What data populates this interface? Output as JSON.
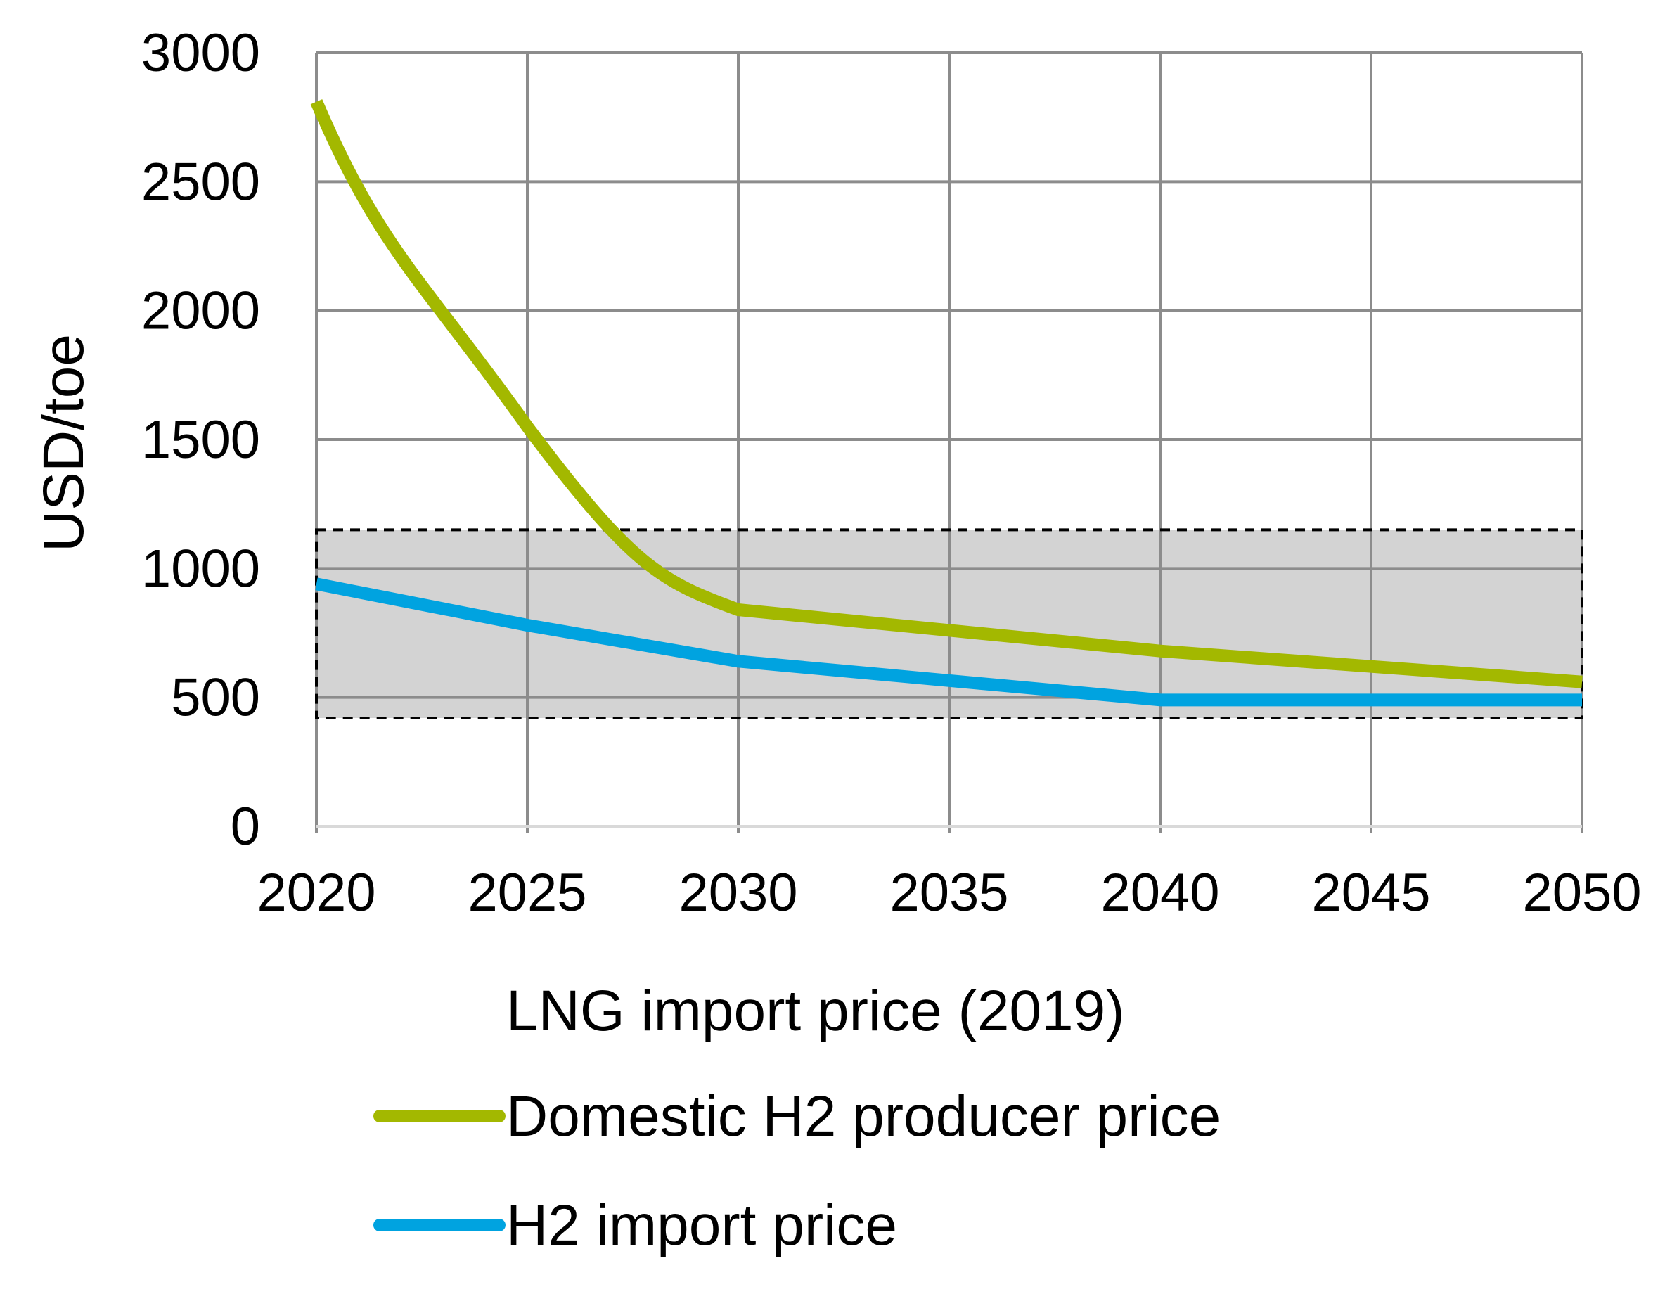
{
  "chart_data": {
    "type": "line",
    "title": "",
    "xlabel": "",
    "ylabel": "USD/toe",
    "xlim": [
      2020,
      2050
    ],
    "ylim": [
      0,
      3000
    ],
    "x_ticks": [
      2020,
      2025,
      2030,
      2035,
      2040,
      2045,
      2050
    ],
    "y_ticks": [
      0,
      500,
      1000,
      1500,
      2000,
      2500,
      3000
    ],
    "grid": true,
    "legend_position": "bottom",
    "x": [
      2020,
      2025,
      2030,
      2040,
      2050
    ],
    "series": [
      {
        "name": "Domestic H2 producer price",
        "color": "#a3b800",
        "values": [
          2810,
          1550,
          840,
          680,
          560
        ]
      },
      {
        "name": "H2 import price",
        "color": "#00a3e0",
        "values": [
          940,
          780,
          640,
          490,
          490
        ]
      }
    ],
    "band": {
      "label": "LNG import price (2019)",
      "range": [
        420,
        1150
      ],
      "x_range": [
        2020,
        2050
      ],
      "fill": "#d3d3d3",
      "border": "dashed"
    }
  },
  "colors": {
    "grid": "#8c8c8c",
    "axis": "#d9d9d9"
  }
}
